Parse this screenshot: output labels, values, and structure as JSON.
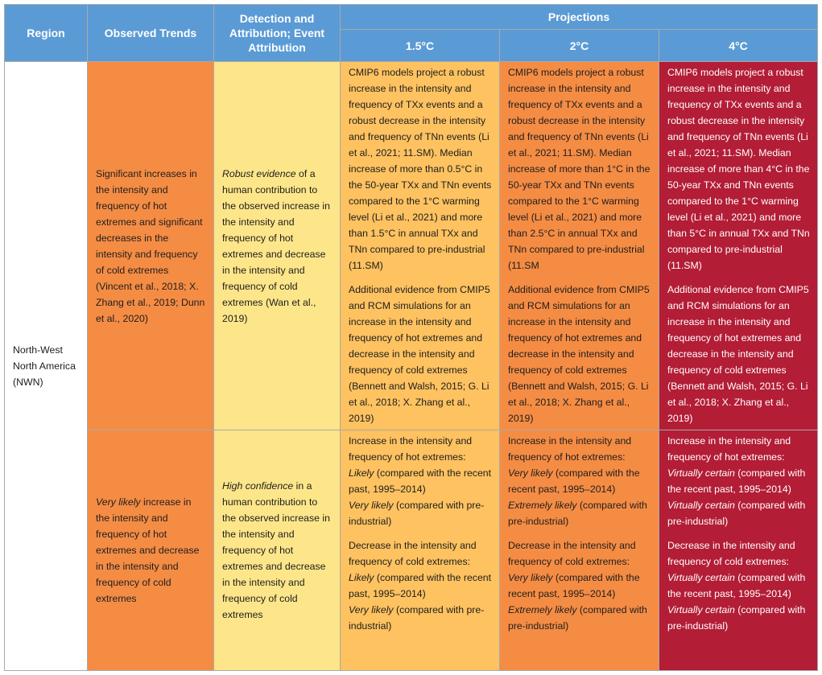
{
  "header": {
    "region": "Region",
    "observed": "Observed Trends",
    "detection": "Detection and Attribution; Event Attribution",
    "projections": "Projections",
    "p15": "1.5°C",
    "p2": "2°C",
    "p4": "4°C"
  },
  "region": "North-West North America (NWN)",
  "row1": {
    "observed": "Significant increases in the intensity and frequency of hot extremes and significant decreases in the intensity and frequency of cold extremes (Vincent et al., 2018; X. Zhang et al., 2019; Dunn et al., 2020)",
    "detection_em": "Robust evidence",
    "detection_rest": " of a human contribution to the observed increase in the intensity and frequency of hot extremes and decrease in the intensity and frequency of cold extremes (Wan et al., 2019)",
    "p15_a": "CMIP6 models project a robust increase in the intensity and frequency of TXx events and a robust decrease in the intensity and frequency of TNn events (Li et al., 2021; 11.SM). Median increase of more than 0.5°C in the 50-year TXx and TNn events compared to the 1°C warming level (Li et al., 2021) and more than 1.5°C in annual TXx and TNn compared to pre-industrial (11.SM)",
    "p15_b": "Additional evidence from CMIP5 and RCM simulations for an increase in the intensity and frequency of hot extremes and decrease in the intensity and frequency of cold extremes (Bennett and Walsh, 2015; G. Li et al., 2018; X. Zhang et al., 2019)",
    "p2_a": "CMIP6 models project a robust increase in the intensity and frequency of TXx events and a robust decrease in the intensity and frequency of TNn events (Li et al., 2021; 11.SM). Median increase of more than 1°C in the 50-year TXx and TNn events compared to the 1°C warming level (Li et al., 2021) and more than 2.5°C in annual TXx and TNn compared to pre-industrial (11.SM",
    "p2_b": "Additional evidence from CMIP5 and RCM simulations for an increase in the intensity and frequency of hot extremes and decrease in the intensity and frequency of cold extremes (Bennett and Walsh, 2015; G. Li et al., 2018; X. Zhang et al., 2019)",
    "p4_a": "CMIP6 models project a robust increase in the intensity and frequency of TXx events and a robust decrease in the intensity and frequency of TNn events (Li et al., 2021; 11.SM). Median increase of more than 4°C in the 50-year TXx and TNn events compared to the 1°C warming level (Li et al., 2021) and more than 5°C in annual TXx and TNn compared to pre-industrial (11.SM)",
    "p4_b": "Additional evidence from CMIP5 and RCM simulations for an increase in the intensity and frequency of hot extremes and decrease in the intensity and frequency of cold extremes (Bennett and Walsh, 2015; G. Li et al., 2018; X. Zhang et al., 2019)"
  },
  "row2": {
    "observed_em": "Very likely",
    "observed_rest": " increase in the intensity and frequency of hot extremes and decrease in the intensity and frequency of cold extremes",
    "detection_em": "High confidence",
    "detection_rest": " in a human contribution to the observed increase in the intensity and frequency of hot extremes and decrease in the intensity and frequency of cold extremes",
    "hot_intro": "Increase in the intensity and frequency of hot extremes:",
    "cold_intro": "Decrease in the intensity and frequency of cold extremes: ",
    "recent_paren": " (compared with the recent past, 1995–2014)",
    "preind_paren": " (compared with pre-industrial)",
    "p15": {
      "hot_recent": "Likely",
      "hot_preind": "Very likely",
      "cold_recent": "Likely",
      "cold_preind": "Very likely"
    },
    "p2": {
      "hot_recent": "Very likely",
      "hot_preind": "Extremely likely",
      "cold_recent": "Very likely",
      "cold_preind": "Extremely likely"
    },
    "p4": {
      "hot_recent": "Virtually certain",
      "hot_preind": "Virtually certain",
      "cold_recent": "Virtually certain",
      "cold_preind": "Virtually certain"
    }
  },
  "colors": {
    "header": "#5b9bd5",
    "observed": "#f58c44",
    "detection": "#fde689",
    "p15": "#fec260",
    "p2": "#f58c44",
    "p4": "#b31d36"
  }
}
